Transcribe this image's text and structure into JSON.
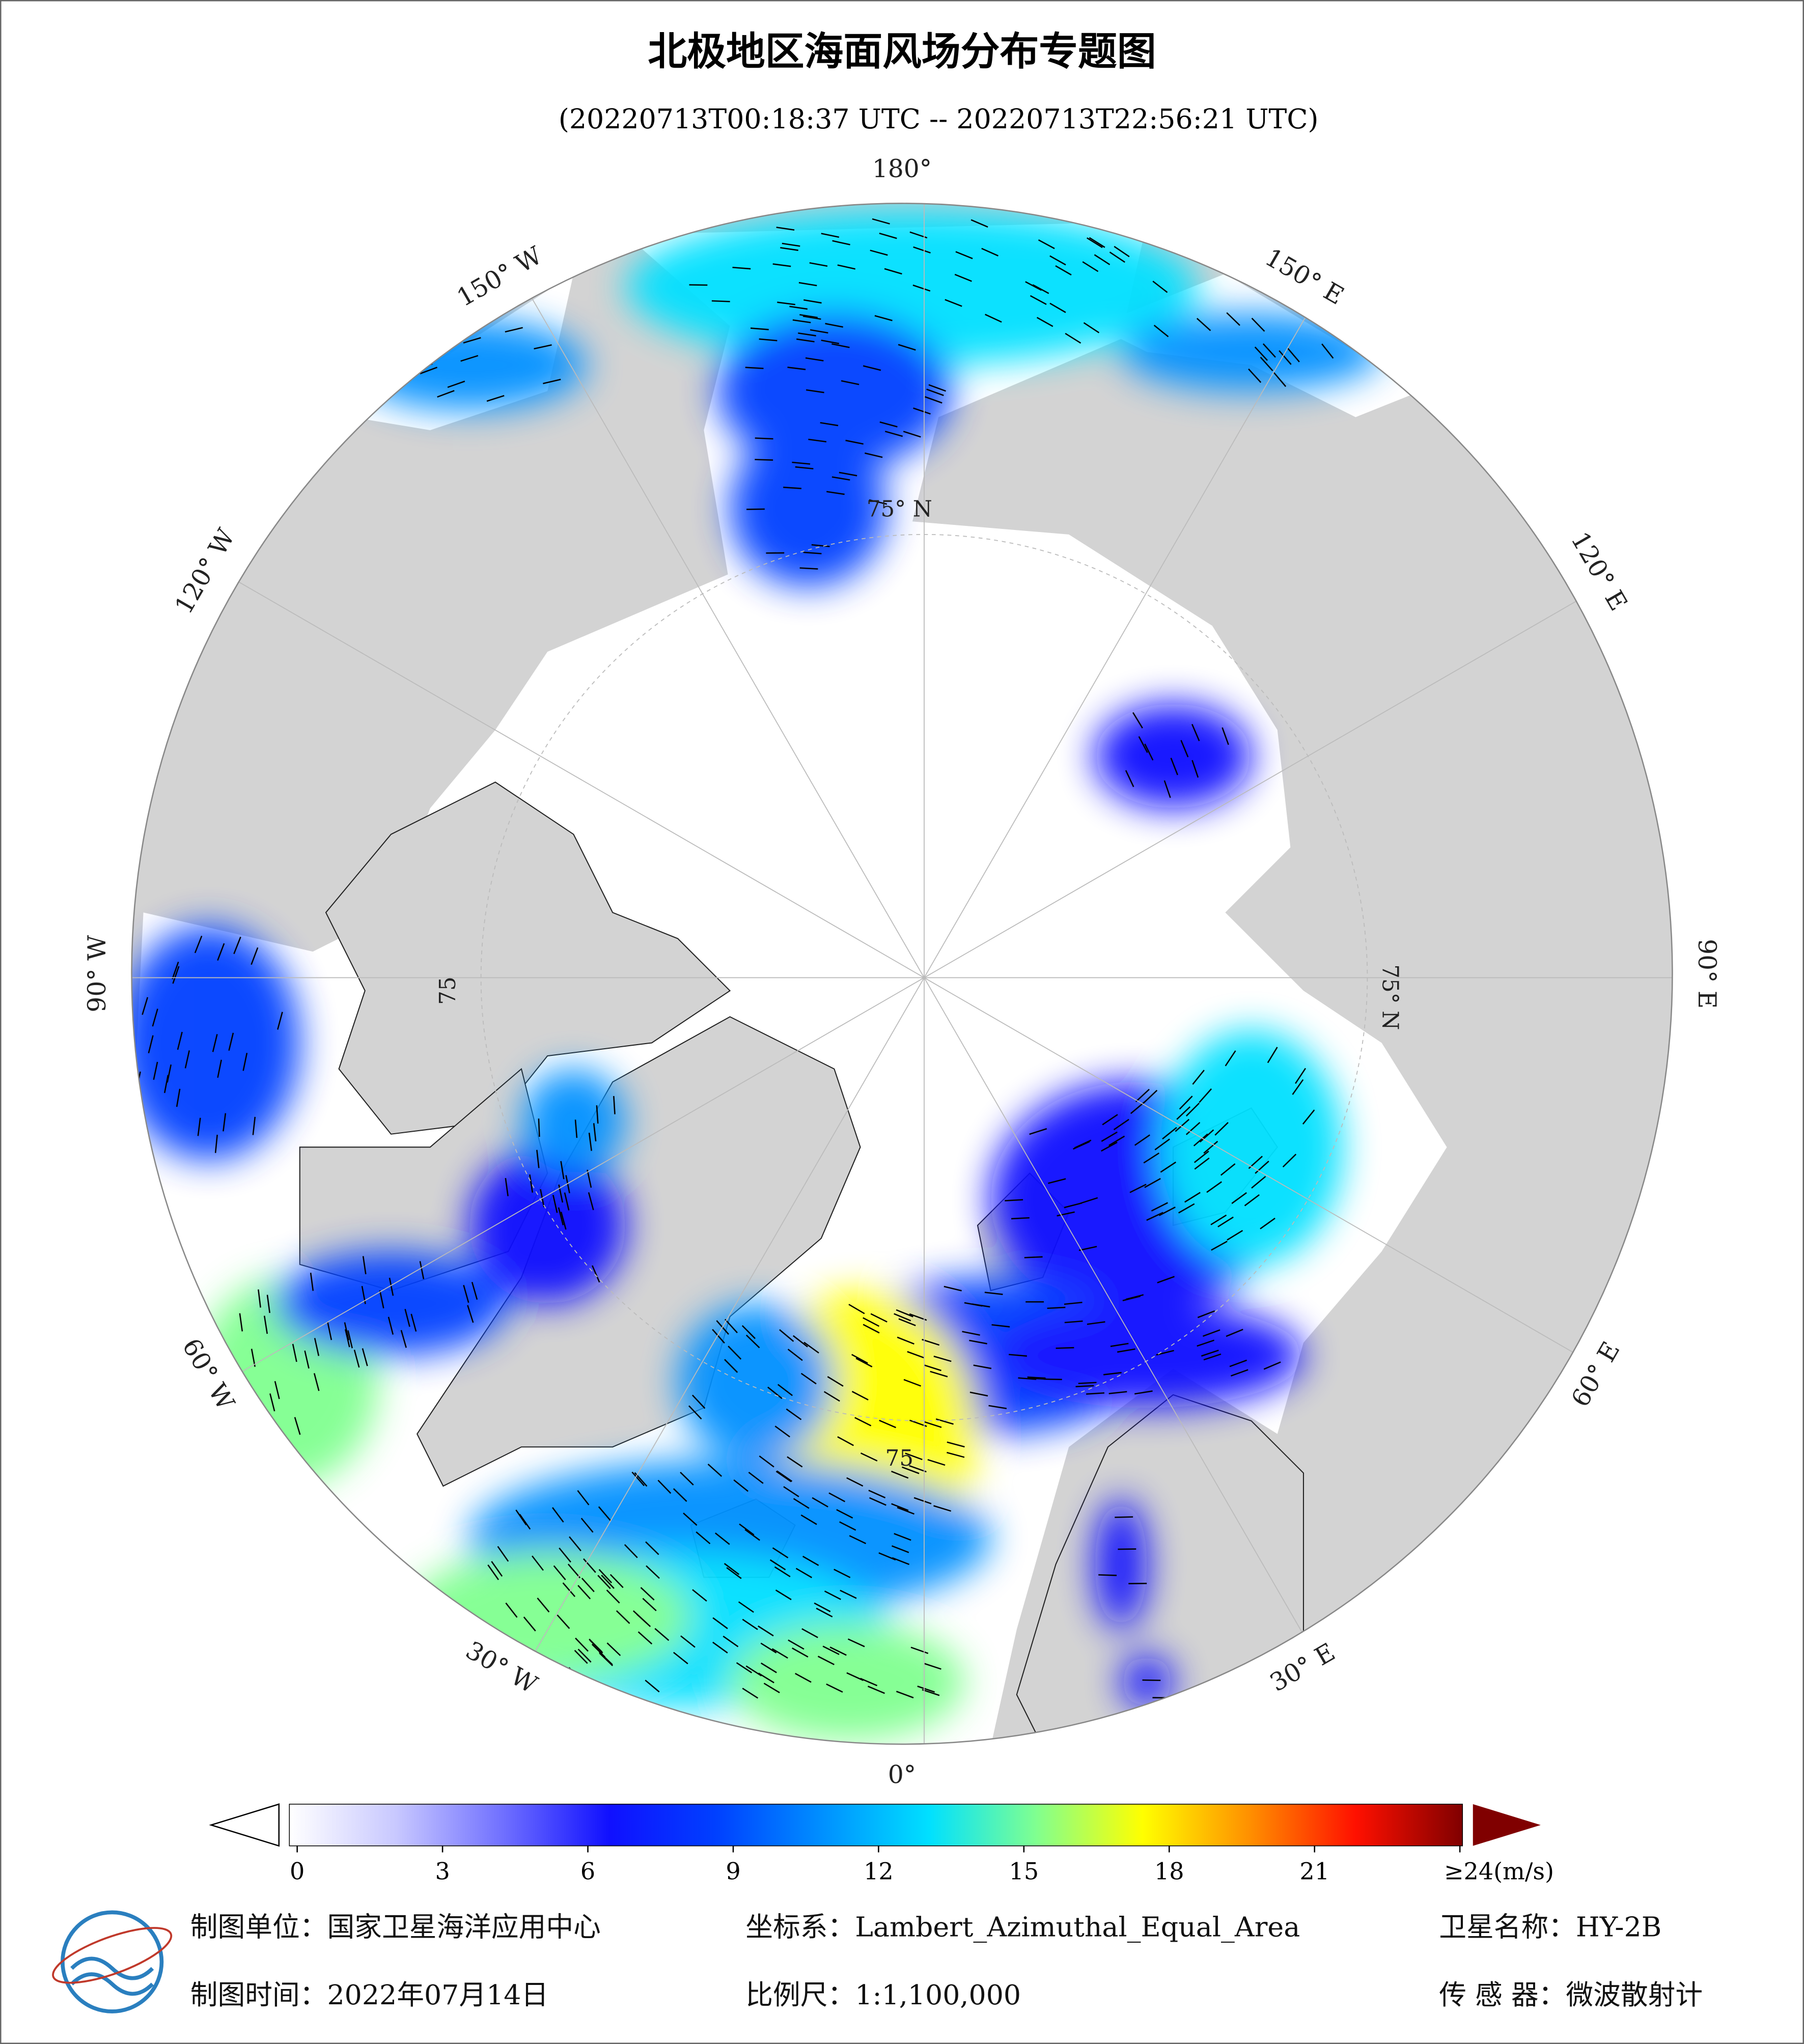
{
  "header": {
    "title": "北极地区海面风场分布专题图",
    "subtitle": "(20220713T00:18:37 UTC -- 20220713T22:56:21 UTC)"
  },
  "map": {
    "graticule_labels": [
      "180°",
      "150° E",
      "120° E",
      "90° E",
      "60° E",
      "30° E",
      "0°",
      "30° W",
      "60° W",
      "90° W",
      "120° W",
      "150° W"
    ],
    "latitude_labels": [
      "75° N",
      "75° N",
      "75",
      "75"
    ]
  },
  "colorbar": {
    "ticks": [
      0,
      3,
      6,
      9,
      12,
      15,
      18,
      21,
      {
        "value": 24,
        "label": "≥24(m/s)"
      }
    ],
    "colors": [
      "#ffffff",
      "#c8c8ff",
      "#7070ff",
      "#1010ff",
      "#0040ff",
      "#0090ff",
      "#00e0ff",
      "#80ff90",
      "#ffff00",
      "#ff9000",
      "#ff1000",
      "#800000"
    ]
  },
  "footer": {
    "unit": "制图单位：国家卫星海洋应用中心",
    "crs": "坐标系：Lambert_Azimuthal_Equal_Area",
    "satellite": "卫星名称：HY-2B",
    "date": "制图时间：2022年07月14日",
    "scale": "比例尺：1:1,100,000",
    "sensor": "传 感 器：微波散射计"
  }
}
